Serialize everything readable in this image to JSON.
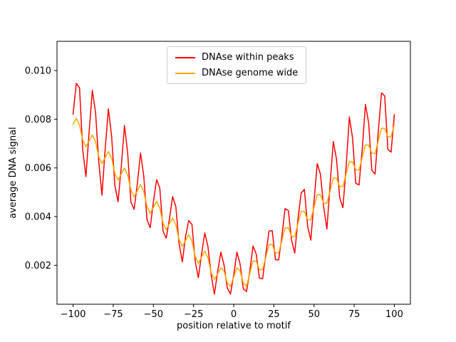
{
  "figure": {
    "xlabel": "position relative to motif",
    "ylabel": "average DNA signal"
  },
  "legend": {
    "entries": [
      {
        "label": "DNAse within peaks",
        "color": "#ff0000"
      },
      {
        "label": "DNAse genome wide",
        "color": "#ffa500"
      }
    ]
  },
  "chart_data": {
    "type": "line",
    "title": "",
    "xlabel": "position relative to motif",
    "ylabel": "average DNA signal",
    "grid": false,
    "legend_position": "upper center",
    "xlim": [
      -110,
      110
    ],
    "ylim": [
      0.0004,
      0.0112
    ],
    "xticks": {
      "values": [
        -100,
        -75,
        -50,
        -25,
        0,
        25,
        50,
        75,
        100
      ],
      "labels": [
        "−100",
        "−75",
        "−50",
        "−25",
        "0",
        "25",
        "50",
        "75",
        "100"
      ]
    },
    "yticks": {
      "values": [
        0.002,
        0.004,
        0.006,
        0.008,
        0.01
      ],
      "labels": [
        "0.002",
        "0.004",
        "0.006",
        "0.008",
        "0.010"
      ]
    },
    "x": [
      -100,
      -98,
      -96,
      -94,
      -92,
      -90,
      -88,
      -86,
      -84,
      -82,
      -80,
      -78,
      -76,
      -74,
      -72,
      -70,
      -68,
      -66,
      -64,
      -62,
      -60,
      -58,
      -56,
      -54,
      -52,
      -50,
      -48,
      -46,
      -44,
      -42,
      -40,
      -38,
      -36,
      -34,
      -32,
      -30,
      -28,
      -26,
      -24,
      -22,
      -20,
      -18,
      -16,
      -14,
      -12,
      -10,
      -8,
      -6,
      -4,
      -2,
      0,
      2,
      4,
      6,
      8,
      10,
      12,
      14,
      16,
      18,
      20,
      22,
      24,
      26,
      28,
      30,
      32,
      34,
      36,
      38,
      40,
      42,
      44,
      46,
      48,
      50,
      52,
      54,
      56,
      58,
      60,
      62,
      64,
      66,
      68,
      70,
      72,
      74,
      76,
      78,
      80,
      82,
      84,
      86,
      88,
      90,
      92,
      94,
      96,
      98,
      100
    ],
    "series": [
      {
        "name": "DNAse within peaks",
        "color": "#ff0000",
        "values": [
          0.0082,
          0.00947,
          0.00929,
          0.00675,
          0.00564,
          0.00748,
          0.00919,
          0.00828,
          0.00625,
          0.00488,
          0.00677,
          0.00843,
          0.00729,
          0.00528,
          0.00461,
          0.00605,
          0.00774,
          0.00661,
          0.0046,
          0.0043,
          0.00533,
          0.00661,
          0.00569,
          0.00387,
          0.00354,
          0.00461,
          0.00552,
          0.00517,
          0.0034,
          0.00311,
          0.0039,
          0.00482,
          0.00441,
          0.0029,
          0.00214,
          0.00318,
          0.00384,
          0.00368,
          0.00217,
          0.00149,
          0.00246,
          0.00333,
          0.00276,
          0.0016,
          0.00081,
          0.00174,
          0.00254,
          0.00201,
          0.00107,
          0.00082,
          0.0016,
          0.00254,
          0.00205,
          0.00103,
          0.00092,
          0.00174,
          0.00279,
          0.00246,
          0.00147,
          0.00145,
          0.00246,
          0.00341,
          0.00342,
          0.00223,
          0.00222,
          0.00318,
          0.00433,
          0.00425,
          0.00303,
          0.0025,
          0.0039,
          0.00497,
          0.00512,
          0.00361,
          0.00303,
          0.00461,
          0.00618,
          0.00575,
          0.00439,
          0.00349,
          0.00533,
          0.00708,
          0.00636,
          0.00477,
          0.00437,
          0.00605,
          0.00809,
          0.00723,
          0.00537,
          0.0053,
          0.00677,
          0.00861,
          0.00785,
          0.0059,
          0.00575,
          0.00748,
          0.00908,
          0.00896,
          0.00676,
          0.00665,
          0.0082
        ]
      },
      {
        "name": "DNAse genome wide",
        "color": "#ffa500",
        "values": [
          0.00779,
          0.00804,
          0.00775,
          0.00714,
          0.00687,
          0.00711,
          0.00735,
          0.00708,
          0.00646,
          0.00618,
          0.00643,
          0.00667,
          0.0064,
          0.00577,
          0.0055,
          0.00575,
          0.00599,
          0.00571,
          0.0051,
          0.00482,
          0.00506,
          0.00531,
          0.00503,
          0.00442,
          0.00414,
          0.00438,
          0.00463,
          0.00435,
          0.00373,
          0.00346,
          0.00371,
          0.00394,
          0.00367,
          0.00306,
          0.00277,
          0.00302,
          0.00326,
          0.00299,
          0.00237,
          0.00209,
          0.00234,
          0.00258,
          0.0023,
          0.00169,
          0.00142,
          0.00165,
          0.0019,
          0.00176,
          0.00128,
          0.00114,
          0.00152,
          0.0019,
          0.00176,
          0.00128,
          0.00114,
          0.00165,
          0.00218,
          0.00217,
          0.00182,
          0.00182,
          0.00234,
          0.00285,
          0.00285,
          0.00251,
          0.0025,
          0.00302,
          0.00353,
          0.00354,
          0.00319,
          0.00318,
          0.00371,
          0.00422,
          0.00421,
          0.00387,
          0.00387,
          0.00438,
          0.0049,
          0.0049,
          0.00455,
          0.00455,
          0.00506,
          0.00558,
          0.00558,
          0.00523,
          0.00523,
          0.00575,
          0.00626,
          0.00625,
          0.00592,
          0.00591,
          0.00643,
          0.00694,
          0.00694,
          0.0066,
          0.00659,
          0.00711,
          0.00763,
          0.00762,
          0.00727,
          0.00728,
          0.00779
        ]
      }
    ]
  }
}
